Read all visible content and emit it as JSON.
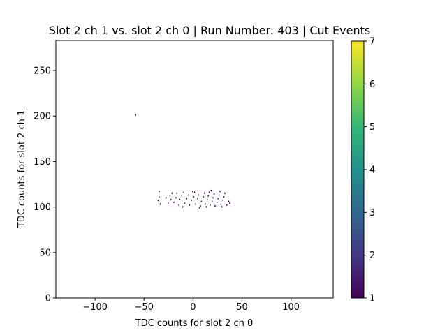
{
  "chart_data": {
    "type": "heatmap",
    "title": "Slot 2 ch 1 vs. slot 2 ch 0 | Run Number: 403 | Cut Events",
    "xlabel": "TDC counts for slot 2 ch 0",
    "ylabel": "TDC counts for slot 2 ch 1",
    "xlim": [
      -140,
      143
    ],
    "ylim": [
      0,
      283
    ],
    "xticks": [
      -100,
      -50,
      0,
      50,
      100
    ],
    "xtick_labels": [
      "−100",
      "−50",
      "0",
      "50",
      "100"
    ],
    "yticks": [
      0,
      50,
      100,
      150,
      200,
      250
    ],
    "ytick_labels": [
      "0",
      "50",
      "100",
      "150",
      "200",
      "250"
    ],
    "grid": false,
    "colorbar": {
      "colormap": "viridis",
      "range": [
        1,
        7
      ],
      "ticks": [
        1,
        2,
        3,
        4,
        5,
        6,
        7
      ],
      "tick_labels": [
        "1",
        "2",
        "3",
        "4",
        "5",
        "6",
        "7"
      ],
      "placement": "right"
    },
    "colors": {
      "viridis_1": "#440154",
      "viridis_2": "#443983",
      "viridis_3": "#31688e",
      "viridis_4": "#21918c",
      "viridis_5": "#35b779",
      "viridis_6": "#90d743",
      "viridis_7": "#fde725"
    },
    "points": [
      {
        "x": -59,
        "y": 201,
        "count": 1
      },
      {
        "x": -35,
        "y": 117,
        "count": 1
      },
      {
        "x": -35,
        "y": 111,
        "count": 2
      },
      {
        "x": -36,
        "y": 107,
        "count": 1
      },
      {
        "x": -34,
        "y": 103,
        "count": 1
      },
      {
        "x": -24,
        "y": 112,
        "count": 2
      },
      {
        "x": -23,
        "y": 108,
        "count": 1
      },
      {
        "x": -22,
        "y": 115,
        "count": 1
      },
      {
        "x": -20,
        "y": 105,
        "count": 1
      },
      {
        "x": -18,
        "y": 110,
        "count": 1
      },
      {
        "x": -17,
        "y": 115,
        "count": 2
      },
      {
        "x": -15,
        "y": 102,
        "count": 1
      },
      {
        "x": -14,
        "y": 108,
        "count": 1
      },
      {
        "x": -12,
        "y": 112,
        "count": 3
      },
      {
        "x": -10,
        "y": 116,
        "count": 1
      },
      {
        "x": -9,
        "y": 104,
        "count": 2
      },
      {
        "x": -7,
        "y": 109,
        "count": 1
      },
      {
        "x": -5,
        "y": 113,
        "count": 1
      },
      {
        "x": -4,
        "y": 102,
        "count": 1
      },
      {
        "x": -2,
        "y": 107,
        "count": 2
      },
      {
        "x": 0,
        "y": 111,
        "count": 1
      },
      {
        "x": 1,
        "y": 116,
        "count": 1
      },
      {
        "x": 2,
        "y": 103,
        "count": 3
      },
      {
        "x": 4,
        "y": 109,
        "count": 2
      },
      {
        "x": 5,
        "y": 113,
        "count": 1
      },
      {
        "x": 7,
        "y": 101,
        "count": 1
      },
      {
        "x": 8,
        "y": 106,
        "count": 2
      },
      {
        "x": 10,
        "y": 111,
        "count": 1
      },
      {
        "x": 11,
        "y": 115,
        "count": 2
      },
      {
        "x": 12,
        "y": 103,
        "count": 1
      },
      {
        "x": 14,
        "y": 108,
        "count": 3
      },
      {
        "x": 15,
        "y": 112,
        "count": 1
      },
      {
        "x": 16,
        "y": 116,
        "count": 1
      },
      {
        "x": 17,
        "y": 102,
        "count": 2
      },
      {
        "x": 19,
        "y": 106,
        "count": 1
      },
      {
        "x": 20,
        "y": 110,
        "count": 2
      },
      {
        "x": 21,
        "y": 114,
        "count": 1
      },
      {
        "x": 22,
        "y": 101,
        "count": 1
      },
      {
        "x": 24,
        "y": 105,
        "count": 2
      },
      {
        "x": 25,
        "y": 109,
        "count": 1
      },
      {
        "x": 26,
        "y": 113,
        "count": 2
      },
      {
        "x": 27,
        "y": 117,
        "count": 1
      },
      {
        "x": 28,
        "y": 103,
        "count": 1
      },
      {
        "x": 30,
        "y": 107,
        "count": 1
      },
      {
        "x": 31,
        "y": 111,
        "count": 2
      },
      {
        "x": 32,
        "y": 115,
        "count": 1
      },
      {
        "x": 34,
        "y": 102,
        "count": 1
      },
      {
        "x": 36,
        "y": 106,
        "count": 1
      },
      {
        "x": 37,
        "y": 104,
        "count": 1
      },
      {
        "x": -28,
        "y": 110,
        "count": 1
      },
      {
        "x": -26,
        "y": 104,
        "count": 1
      },
      {
        "x": -1,
        "y": 117,
        "count": 1
      },
      {
        "x": 18,
        "y": 118,
        "count": 1
      },
      {
        "x": 6,
        "y": 99,
        "count": 1
      },
      {
        "x": 13,
        "y": 100,
        "count": 1
      },
      {
        "x": 29,
        "y": 100,
        "count": 1
      },
      {
        "x": -11,
        "y": 100,
        "count": 1
      }
    ]
  }
}
